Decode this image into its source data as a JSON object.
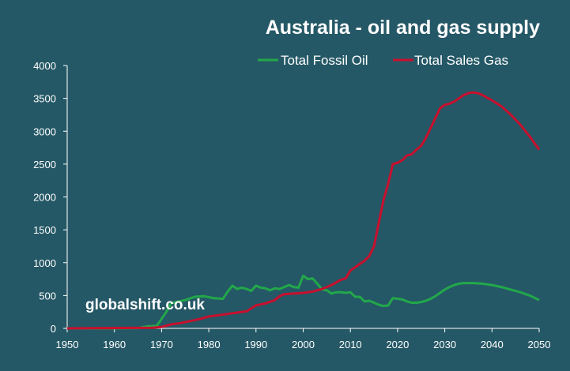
{
  "chart_data": {
    "type": "line",
    "title": "Australia - oil and gas supply",
    "xlabel": "",
    "ylabel": "",
    "xlim": [
      1950,
      2050
    ],
    "ylim": [
      0,
      4000
    ],
    "x_ticks": [
      "1950",
      "1960",
      "1970",
      "1980",
      "1990",
      "2000",
      "2010",
      "2020",
      "2030",
      "2040",
      "2050"
    ],
    "y_ticks": [
      "0",
      "500",
      "1000",
      "1500",
      "2000",
      "2500",
      "3000",
      "3500",
      "4000"
    ],
    "grid": false,
    "legend_position": "top-right",
    "series": [
      {
        "name": "Total Fossil Oil",
        "color": "#22a84a",
        "points": [
          [
            1950,
            0
          ],
          [
            1960,
            0
          ],
          [
            1965,
            5
          ],
          [
            1967,
            30
          ],
          [
            1969,
            40
          ],
          [
            1971,
            250
          ],
          [
            1972,
            380
          ],
          [
            1973,
            400
          ],
          [
            1975,
            430
          ],
          [
            1977,
            480
          ],
          [
            1979,
            490
          ],
          [
            1981,
            460
          ],
          [
            1983,
            450
          ],
          [
            1984,
            560
          ],
          [
            1985,
            650
          ],
          [
            1986,
            600
          ],
          [
            1987,
            620
          ],
          [
            1988,
            600
          ],
          [
            1989,
            570
          ],
          [
            1990,
            650
          ],
          [
            1991,
            620
          ],
          [
            1992,
            610
          ],
          [
            1993,
            580
          ],
          [
            1994,
            610
          ],
          [
            1995,
            600
          ],
          [
            1996,
            630
          ],
          [
            1997,
            660
          ],
          [
            1998,
            630
          ],
          [
            1999,
            620
          ],
          [
            2000,
            800
          ],
          [
            2001,
            750
          ],
          [
            2002,
            760
          ],
          [
            2003,
            680
          ],
          [
            2004,
            590
          ],
          [
            2005,
            580
          ],
          [
            2006,
            530
          ],
          [
            2007,
            550
          ],
          [
            2008,
            550
          ],
          [
            2009,
            540
          ],
          [
            2010,
            550
          ],
          [
            2011,
            480
          ],
          [
            2012,
            480
          ],
          [
            2013,
            410
          ],
          [
            2014,
            420
          ],
          [
            2015,
            390
          ],
          [
            2016,
            360
          ],
          [
            2017,
            340
          ],
          [
            2018,
            350
          ],
          [
            2019,
            460
          ],
          [
            2020,
            450
          ],
          [
            2021,
            440
          ],
          [
            2022,
            410
          ],
          [
            2023,
            390
          ],
          [
            2024,
            390
          ],
          [
            2025,
            400
          ],
          [
            2026,
            420
          ],
          [
            2027,
            450
          ],
          [
            2028,
            490
          ],
          [
            2029,
            540
          ],
          [
            2030,
            590
          ],
          [
            2031,
            630
          ],
          [
            2032,
            660
          ],
          [
            2033,
            680
          ],
          [
            2034,
            690
          ],
          [
            2035,
            690
          ],
          [
            2036,
            690
          ],
          [
            2038,
            680
          ],
          [
            2040,
            660
          ],
          [
            2042,
            630
          ],
          [
            2044,
            590
          ],
          [
            2046,
            550
          ],
          [
            2048,
            500
          ],
          [
            2050,
            430
          ]
        ]
      },
      {
        "name": "Total Sales Gas",
        "color": "#c8102e",
        "points": [
          [
            1950,
            0
          ],
          [
            1968,
            10
          ],
          [
            1970,
            20
          ],
          [
            1972,
            60
          ],
          [
            1974,
            80
          ],
          [
            1976,
            110
          ],
          [
            1978,
            140
          ],
          [
            1980,
            180
          ],
          [
            1982,
            200
          ],
          [
            1984,
            220
          ],
          [
            1986,
            240
          ],
          [
            1988,
            260
          ],
          [
            1990,
            350
          ],
          [
            1992,
            380
          ],
          [
            1994,
            430
          ],
          [
            1995,
            490
          ],
          [
            1996,
            520
          ],
          [
            1998,
            530
          ],
          [
            2000,
            540
          ],
          [
            2002,
            560
          ],
          [
            2004,
            600
          ],
          [
            2006,
            660
          ],
          [
            2007,
            700
          ],
          [
            2008,
            740
          ],
          [
            2009,
            760
          ],
          [
            2010,
            880
          ],
          [
            2011,
            930
          ],
          [
            2012,
            980
          ],
          [
            2013,
            1030
          ],
          [
            2014,
            1100
          ],
          [
            2015,
            1250
          ],
          [
            2016,
            1600
          ],
          [
            2017,
            1950
          ],
          [
            2018,
            2200
          ],
          [
            2019,
            2500
          ],
          [
            2020,
            2520
          ],
          [
            2021,
            2560
          ],
          [
            2022,
            2630
          ],
          [
            2023,
            2650
          ],
          [
            2024,
            2720
          ],
          [
            2025,
            2780
          ],
          [
            2026,
            2900
          ],
          [
            2027,
            3050
          ],
          [
            2028,
            3200
          ],
          [
            2029,
            3350
          ],
          [
            2030,
            3400
          ],
          [
            2031,
            3420
          ],
          [
            2032,
            3450
          ],
          [
            2033,
            3500
          ],
          [
            2034,
            3550
          ],
          [
            2035,
            3580
          ],
          [
            2036,
            3590
          ],
          [
            2037,
            3580
          ],
          [
            2038,
            3550
          ],
          [
            2040,
            3470
          ],
          [
            2042,
            3380
          ],
          [
            2044,
            3250
          ],
          [
            2046,
            3100
          ],
          [
            2048,
            2920
          ],
          [
            2050,
            2720
          ]
        ]
      }
    ],
    "annotations": [
      "globalshift.co.uk"
    ]
  }
}
